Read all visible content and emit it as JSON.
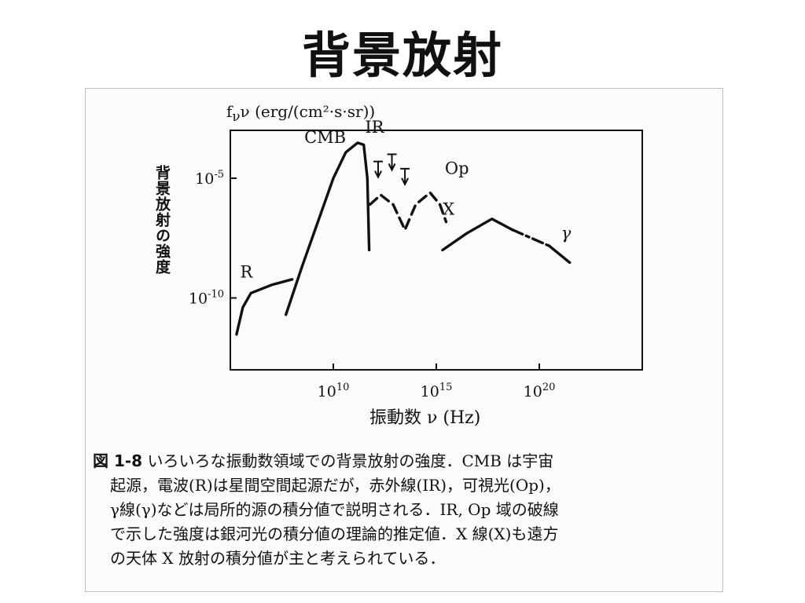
{
  "slide": {
    "title": "背景放射"
  },
  "chart_data": {
    "type": "line",
    "ylabel_vertical": "背景放射の強度",
    "ylabel_unit": "f<sub>ν</sub>ν (erg/(cm²·s·sr))",
    "xlabel": "振動数 ν (Hz)",
    "x_scale": "log",
    "y_scale": "log",
    "xlim": [
      100000,
      10000000000000000000000000
    ],
    "ylim": [
      1e-13,
      0.001
    ],
    "x_ticks": [
      {
        "value": 10000000000,
        "label": "10",
        "exp": "10"
      },
      {
        "value": 1000000000000000,
        "label": "10",
        "exp": "15"
      },
      {
        "value": 100000000000000000000,
        "label": "10",
        "exp": "20"
      }
    ],
    "y_ticks": [
      {
        "value": 1e-05,
        "label": "10",
        "exp": "-5"
      },
      {
        "value": 1e-10,
        "label": "10",
        "exp": "-10"
      }
    ],
    "series": [
      {
        "name": "R",
        "style": "solid",
        "points": [
          [
            200000,
            3e-12
          ],
          [
            400000,
            4e-11
          ],
          [
            1000000,
            1.6e-10
          ],
          [
            10000000,
            3.5e-10
          ],
          [
            100000000,
            6e-10
          ]
        ]
      },
      {
        "name": "CMB",
        "style": "solid",
        "points": [
          [
            50000000,
            2e-11
          ],
          [
            300000000,
            2e-09
          ],
          [
            2000000000,
            2e-07
          ],
          [
            10000000000,
            1e-05
          ],
          [
            40000000000,
            0.00012
          ],
          [
            150000000000,
            0.0003
          ],
          [
            300000000000,
            0.00025
          ],
          [
            450000000000,
            1e-05
          ],
          [
            550000000000,
            1e-08
          ]
        ]
      },
      {
        "name": "IR",
        "style": "dashed",
        "points": [
          [
            600000000000,
            8e-07
          ],
          [
            2000000000000,
            2e-06
          ],
          [
            8000000000000,
            8e-07
          ],
          [
            30000000000000,
            7e-08
          ],
          [
            100000000000000,
            8e-07
          ],
          [
            500000000000000,
            2.5e-06
          ],
          [
            1500000000000000,
            8e-07
          ],
          [
            3000000000000000,
            1.5e-07
          ]
        ]
      },
      {
        "name": "X",
        "style": "solid",
        "points": [
          [
            2000000000000000,
            1e-08
          ],
          [
            30000000000000000,
            5e-08
          ],
          [
            500000000000000000,
            2e-07
          ],
          [
            5000000000000000000,
            7e-08
          ]
        ]
      },
      {
        "name": "γ",
        "style": "dash-dot",
        "points": [
          [
            5000000000000000000,
            7e-08
          ],
          [
            300000000000000000000,
            1.5e-08
          ]
        ]
      },
      {
        "name": "γ",
        "style": "solid",
        "points": [
          [
            300000000000000000000,
            1.5e-08
          ],
          [
            3000000000000000000000,
            3e-09
          ]
        ]
      }
    ],
    "annotations": [
      {
        "text": "R",
        "x": 600000,
        "y": 7e-10
      },
      {
        "text": "CMB",
        "x": 4000000000,
        "y": 0.0003
      },
      {
        "text": "IR",
        "x": 1000000000000,
        "y": 0.0008
      },
      {
        "text": "Op",
        "x": 10000000000000000,
        "y": 1.5e-05
      },
      {
        "text": "X",
        "x": 4000000000000000,
        "y": 3e-07
      },
      {
        "text": "γ",
        "x": 2000000000000000000000,
        "y": 3e-08
      }
    ],
    "upper_limits": [
      {
        "x": 1500000000000,
        "y": 5e-05
      },
      {
        "x": 7000000000000,
        "y": 0.0001
      },
      {
        "x": 30000000000000,
        "y": 2.5e-05
      }
    ]
  },
  "caption": {
    "heading": "図 1-8",
    "lines": [
      "いろいろな振動数領域での背景放射の強度．CMB は宇宙",
      "起源，電波(R)は星間空間起源だが，赤外線(IR)，可視光(Op)，",
      "γ線(γ)などは局所的源の積分値で説明される．IR, Op 域の破線",
      "で示した強度は銀河光の積分値の理論的推定値．X 線(X)も遠方",
      "の天体 X 放射の積分値が主と考えられている．"
    ]
  }
}
